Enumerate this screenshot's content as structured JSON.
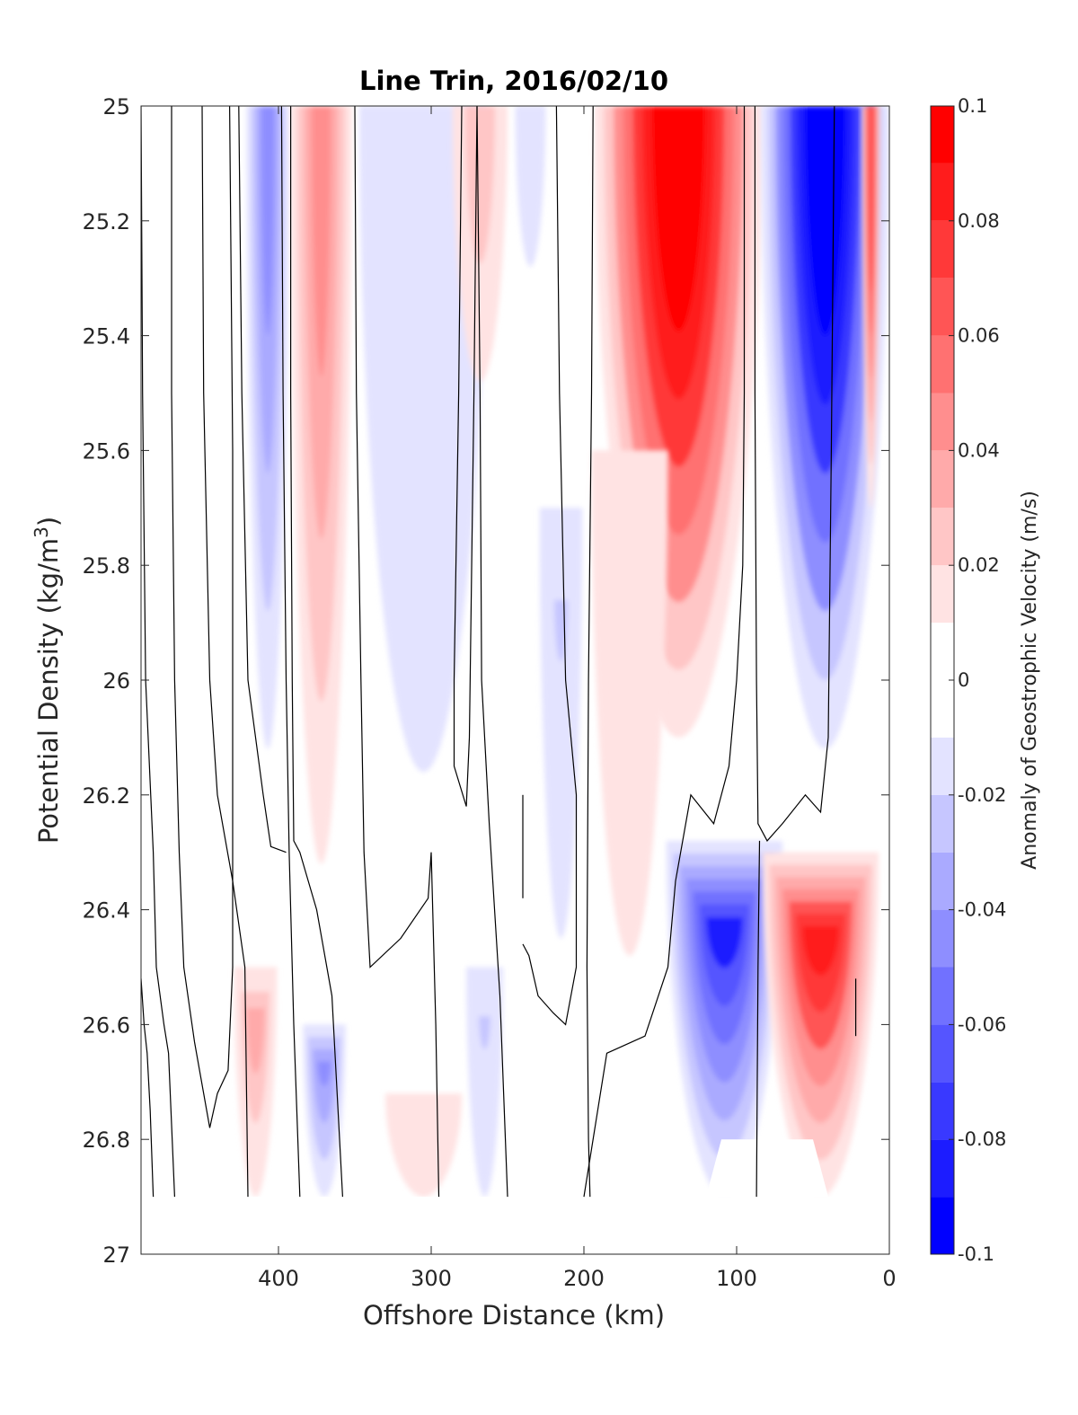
{
  "chart_data": {
    "type": "heatmap",
    "title": "Line Trin, 2016/02/10",
    "xlabel": "Offshore Distance (km)",
    "ylabel_main": "Potential Density (kg/m",
    "ylabel_sup": "3",
    "ylabel_close": ")",
    "colorbar_label": "Anomaly of Geostrophic Velocity (m/s)",
    "xlim": [
      490,
      0
    ],
    "ylim": [
      27,
      25
    ],
    "x_ticks": [
      400,
      300,
      200,
      100,
      0
    ],
    "x_tick_labels": [
      "400",
      "300",
      "200",
      "100",
      "0"
    ],
    "y_ticks": [
      25,
      25.2,
      25.4,
      25.6,
      25.8,
      26,
      26.2,
      26.4,
      26.6,
      26.8,
      27
    ],
    "y_tick_labels": [
      "25",
      "25.2",
      "25.4",
      "25.6",
      "25.8",
      "26",
      "26.2",
      "26.4",
      "26.6",
      "26.8",
      "27"
    ],
    "colorbar_ticks": [
      0.1,
      0.08,
      0.06,
      0.04,
      0.02,
      0,
      -0.02,
      -0.04,
      -0.06,
      -0.08,
      -0.1
    ],
    "colorbar_tick_labels": [
      "0.1",
      "0.08",
      "0.06",
      "0.04",
      "0.02",
      "0",
      "-0.02",
      "-0.04",
      "-0.06",
      "-0.08",
      "-0.1"
    ],
    "clim": [
      -0.1,
      0.1
    ],
    "levels": [
      -0.1,
      -0.09,
      -0.08,
      -0.07,
      -0.06,
      -0.05,
      -0.04,
      -0.03,
      -0.02,
      -0.01,
      0.01,
      0.02,
      0.03,
      0.04,
      0.05,
      0.06,
      0.07,
      0.08,
      0.09,
      0.1
    ],
    "colormap": [
      "#0000ff",
      "#1c1cff",
      "#3939ff",
      "#5555ff",
      "#7171ff",
      "#8e8eff",
      "#aaaaff",
      "#c6c6ff",
      "#e3e3ff",
      "#ffffff",
      "#ffe3e3",
      "#ffc6c6",
      "#ffaaaa",
      "#ff8e8e",
      "#ff7171",
      "#ff5555",
      "#ff3939",
      "#ff1c1c",
      "#ff0000"
    ],
    "data_bottom_density": 26.9,
    "grid": false,
    "features": [
      {
        "kind": "negative",
        "x_center": 407,
        "x_halfwidth": 14,
        "y_top": 25,
        "y_bottom": 26.12,
        "peak": -0.045
      },
      {
        "kind": "positive",
        "x_center": 372,
        "x_halfwidth": 20,
        "y_top": 25,
        "y_bottom": 26.32,
        "peak": 0.045
      },
      {
        "kind": "negative",
        "x_center": 305,
        "x_halfwidth": 42,
        "y_top": 25,
        "y_bottom": 26.16,
        "peak": -0.018
      },
      {
        "kind": "positive",
        "x_center": 268,
        "x_halfwidth": 18,
        "y_top": 25,
        "y_bottom": 25.48,
        "peak": 0.025
      },
      {
        "kind": "negative",
        "x_center": 235,
        "x_halfwidth": 10,
        "y_top": 25,
        "y_bottom": 25.28,
        "peak": -0.015
      },
      {
        "kind": "negative",
        "x_center": 215,
        "x_halfwidth": 14,
        "y_top": 25.7,
        "y_bottom": 26.45,
        "peak": -0.02
      },
      {
        "kind": "positive",
        "x_center": 138,
        "x_halfwidth": 55,
        "y_top": 25,
        "y_bottom": 26.1,
        "peak": 0.1
      },
      {
        "kind": "positive",
        "x_center": 170,
        "x_halfwidth": 25,
        "y_top": 25.6,
        "y_bottom": 26.48,
        "peak": 0.018
      },
      {
        "kind": "negative",
        "x_center": 42,
        "x_halfwidth": 42,
        "y_top": 25,
        "y_bottom": 26.12,
        "peak": -0.1
      },
      {
        "kind": "positive",
        "x_center": 12,
        "x_halfwidth": 6,
        "y_top": 25,
        "y_bottom": 25.7,
        "peak": 0.07
      },
      {
        "kind": "negative",
        "x_center": 108,
        "x_halfwidth": 38,
        "y_top": 26.28,
        "y_bottom": 26.9,
        "peak": -0.08
      },
      {
        "kind": "positive",
        "x_center": 45,
        "x_halfwidth": 38,
        "y_top": 26.3,
        "y_bottom": 26.9,
        "peak": 0.085
      },
      {
        "kind": "positive",
        "x_center": 415,
        "x_halfwidth": 14,
        "y_top": 26.5,
        "y_bottom": 26.9,
        "peak": 0.035
      },
      {
        "kind": "negative",
        "x_center": 370,
        "x_halfwidth": 14,
        "y_top": 26.6,
        "y_bottom": 26.9,
        "peak": -0.04
      },
      {
        "kind": "positive",
        "x_center": 305,
        "x_halfwidth": 25,
        "y_top": 26.72,
        "y_bottom": 26.9,
        "peak": 0.015
      },
      {
        "kind": "negative",
        "x_center": 265,
        "x_halfwidth": 12,
        "y_top": 26.5,
        "y_bottom": 26.9,
        "peak": -0.02
      }
    ],
    "masked_region": [
      [
        120,
        26.9
      ],
      [
        110,
        26.8
      ],
      [
        50,
        26.8
      ],
      [
        40,
        26.9
      ]
    ]
  }
}
